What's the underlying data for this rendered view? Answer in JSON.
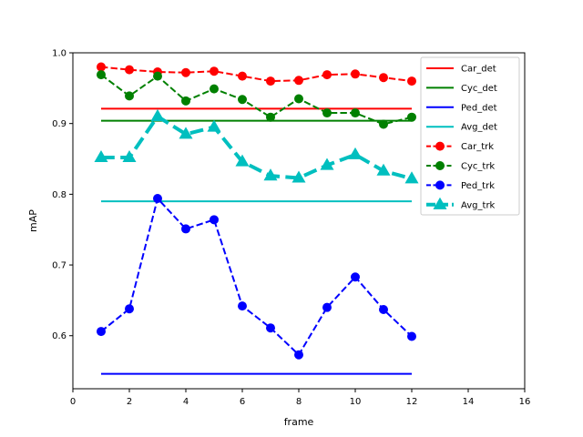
{
  "chart_data": {
    "type": "line",
    "title": "",
    "xlabel": "frame",
    "ylabel": "mAP",
    "xlim": [
      0,
      16
    ],
    "ylim": [
      0.525,
      1.0
    ],
    "xticks": [
      0,
      2,
      4,
      6,
      8,
      10,
      12,
      14,
      16
    ],
    "yticks": [
      0.6,
      0.7,
      0.8,
      0.9,
      1.0
    ],
    "xtick_labels": [
      "0",
      "2",
      "4",
      "6",
      "8",
      "10",
      "12",
      "14",
      "16"
    ],
    "ytick_labels": [
      "0.6",
      "0.7",
      "0.8",
      "0.9",
      "1.0"
    ],
    "grid": false,
    "legend_position": "top-right",
    "x": [
      1,
      2,
      3,
      4,
      5,
      6,
      7,
      8,
      9,
      10,
      11,
      12
    ],
    "series": [
      {
        "name": "Car_det",
        "color": "#ff0000",
        "style": "solid",
        "marker": "none",
        "values": [
          0.921,
          0.921,
          0.921,
          0.921,
          0.921,
          0.921,
          0.921,
          0.921,
          0.921,
          0.921,
          0.921,
          0.921
        ]
      },
      {
        "name": "Cyc_det",
        "color": "#008000",
        "style": "solid",
        "marker": "none",
        "values": [
          0.904,
          0.904,
          0.904,
          0.904,
          0.904,
          0.904,
          0.904,
          0.904,
          0.904,
          0.904,
          0.904,
          0.904
        ]
      },
      {
        "name": "Ped_det",
        "color": "#0000ff",
        "style": "solid",
        "marker": "none",
        "values": [
          0.546,
          0.546,
          0.546,
          0.546,
          0.546,
          0.546,
          0.546,
          0.546,
          0.546,
          0.546,
          0.546,
          0.546
        ]
      },
      {
        "name": "Avg_det",
        "color": "#00bfbf",
        "style": "solid",
        "marker": "none",
        "values": [
          0.79,
          0.79,
          0.79,
          0.79,
          0.79,
          0.79,
          0.79,
          0.79,
          0.79,
          0.79,
          0.79,
          0.79
        ]
      },
      {
        "name": "Car_trk",
        "color": "#ff0000",
        "style": "dashed",
        "marker": "circle",
        "values": [
          0.98,
          0.976,
          0.973,
          0.972,
          0.974,
          0.967,
          0.96,
          0.961,
          0.969,
          0.97,
          0.965,
          0.96
        ]
      },
      {
        "name": "Cyc_trk",
        "color": "#008000",
        "style": "dashed",
        "marker": "circle",
        "values": [
          0.969,
          0.939,
          0.967,
          0.932,
          0.949,
          0.934,
          0.909,
          0.935,
          0.915,
          0.915,
          0.899,
          0.909
        ]
      },
      {
        "name": "Ped_trk",
        "color": "#0000ff",
        "style": "dashed",
        "marker": "circle",
        "values": [
          0.606,
          0.638,
          0.794,
          0.751,
          0.764,
          0.642,
          0.611,
          0.573,
          0.64,
          0.683,
          0.637,
          0.599
        ]
      },
      {
        "name": "Avg_trk",
        "color": "#00bfbf",
        "style": "thickdashed",
        "marker": "triangle",
        "values": [
          0.852,
          0.852,
          0.91,
          0.885,
          0.895,
          0.846,
          0.826,
          0.823,
          0.841,
          0.856,
          0.833,
          0.822
        ]
      }
    ]
  }
}
